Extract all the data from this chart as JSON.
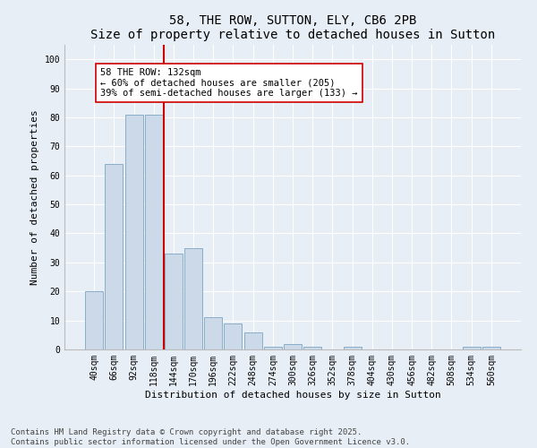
{
  "title": "58, THE ROW, SUTTON, ELY, CB6 2PB",
  "subtitle": "Size of property relative to detached houses in Sutton",
  "xlabel": "Distribution of detached houses by size in Sutton",
  "ylabel": "Number of detached properties",
  "categories": [
    "40sqm",
    "66sqm",
    "92sqm",
    "118sqm",
    "144sqm",
    "170sqm",
    "196sqm",
    "222sqm",
    "248sqm",
    "274sqm",
    "300sqm",
    "326sqm",
    "352sqm",
    "378sqm",
    "404sqm",
    "430sqm",
    "456sqm",
    "482sqm",
    "508sqm",
    "534sqm",
    "560sqm"
  ],
  "values": [
    20,
    64,
    81,
    81,
    33,
    35,
    11,
    9,
    6,
    1,
    2,
    1,
    0,
    1,
    0,
    0,
    0,
    0,
    0,
    1,
    1
  ],
  "bar_color": "#ccd9e8",
  "bar_edge_color": "#89aec8",
  "vline_x": 3.5,
  "vline_color": "#cc0000",
  "annotation_text": "58 THE ROW: 132sqm\n← 60% of detached houses are smaller (205)\n39% of semi-detached houses are larger (133) →",
  "annotation_box_facecolor": "#ffffff",
  "annotation_box_edgecolor": "#cc0000",
  "ylim": [
    0,
    105
  ],
  "yticks": [
    0,
    10,
    20,
    30,
    40,
    50,
    60,
    70,
    80,
    90,
    100
  ],
  "background_color": "#e8eef5",
  "grid_color": "#ffffff",
  "footer_text": "Contains HM Land Registry data © Crown copyright and database right 2025.\nContains public sector information licensed under the Open Government Licence v3.0.",
  "title_fontsize": 10,
  "subtitle_fontsize": 9,
  "axis_label_fontsize": 8,
  "tick_fontsize": 7,
  "annotation_fontsize": 7.5,
  "footer_fontsize": 6.5
}
